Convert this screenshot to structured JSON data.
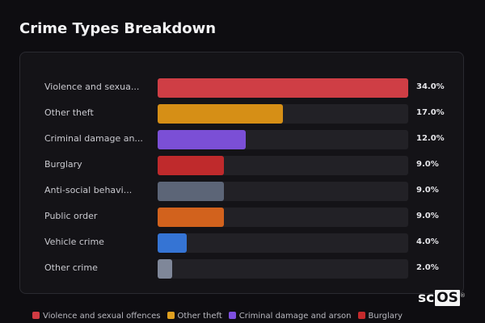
{
  "title": "Crime Types Breakdown",
  "logo": {
    "prefix": "sc",
    "boxed": "OS",
    "mark": "®"
  },
  "chart_data": {
    "type": "bar",
    "orientation": "horizontal",
    "title": "Crime Types Breakdown",
    "xlabel": "",
    "ylabel": "",
    "xlim": [
      0,
      34
    ],
    "value_unit": "%",
    "categories": [
      "Violence and sexual offences",
      "Other theft",
      "Criminal damage and arson",
      "Burglary",
      "Anti-social behaviour",
      "Public order",
      "Vehicle crime",
      "Other crime"
    ],
    "display_labels": [
      "Violence and sexua...",
      "Other theft",
      "Criminal damage an...",
      "Burglary",
      "Anti-social behavi...",
      "Public order",
      "Vehicle crime",
      "Other crime"
    ],
    "values": [
      34.0,
      17.0,
      12.0,
      9.0,
      9.0,
      9.0,
      4.0,
      2.0
    ],
    "value_labels": [
      "34.0%",
      "17.0%",
      "12.0%",
      "9.0%",
      "9.0%",
      "9.0%",
      "4.0%",
      "2.0%"
    ],
    "colors": [
      "#cf3e45",
      "#d68f16",
      "#7b4fd6",
      "#bf2a2c",
      "#5c6577",
      "#d2621d",
      "#3574d4",
      "#7f8799"
    ],
    "legend": {
      "position": "bottom",
      "entries": [
        {
          "label": "Violence and sexual offences",
          "color": "#d13b43"
        },
        {
          "label": "Other theft",
          "color": "#e0a020"
        },
        {
          "label": "Criminal damage and arson",
          "color": "#7d4fe0"
        },
        {
          "label": "Burglary",
          "color": "#c42a2c"
        }
      ]
    },
    "grid": false
  }
}
